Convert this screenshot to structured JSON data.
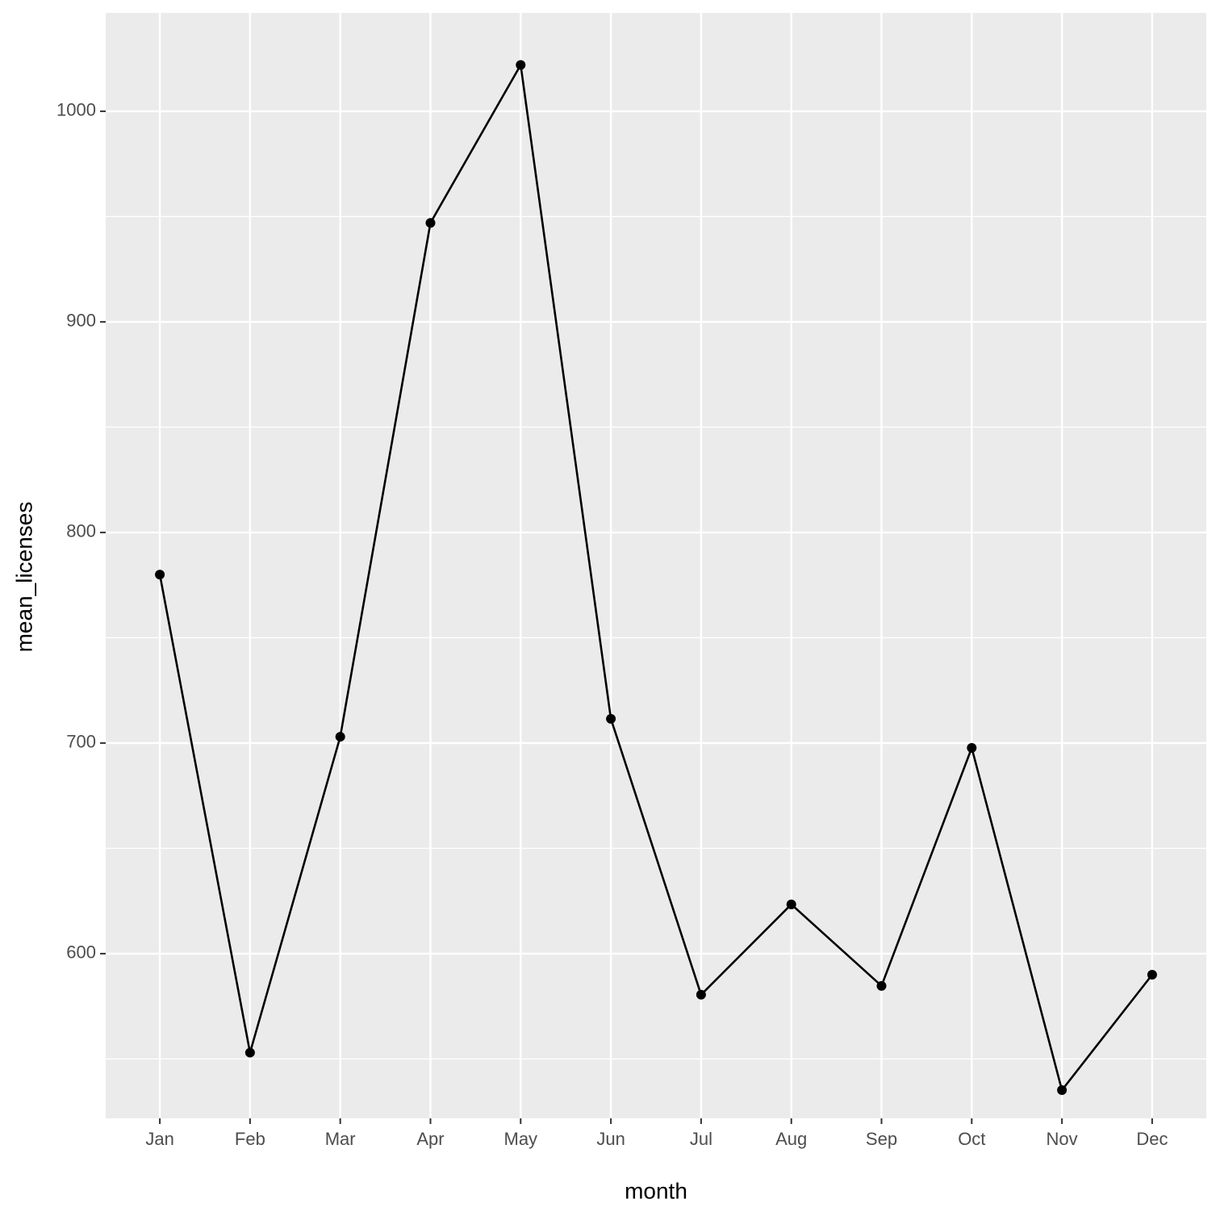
{
  "chart_data": {
    "type": "line",
    "x_label": "month",
    "y_label": "mean_licenses",
    "categories": [
      "Jan",
      "Feb",
      "Mar",
      "Apr",
      "May",
      "Jun",
      "Jul",
      "Aug",
      "Sep",
      "Oct",
      "Nov",
      "Dec"
    ],
    "values": [
      780,
      553,
      703,
      947,
      1022,
      711.5,
      580.5,
      623.4,
      584.7,
      697.7,
      535.2,
      590
    ],
    "color": "#000000",
    "ylim": [
      521.8,
      1046.7
    ],
    "yticks": [
      600,
      700,
      800,
      900,
      1000
    ],
    "grid": true
  }
}
